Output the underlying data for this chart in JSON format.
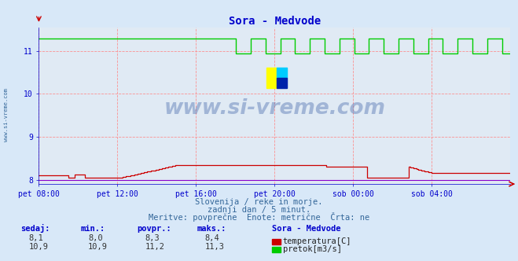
{
  "title": "Sora - Medvode",
  "bg_color": "#d8e8f8",
  "plot_bg_color": "#e0eaf4",
  "grid_color": "#ff8888",
  "ylim": [
    7.9,
    11.55
  ],
  "yticks": [
    8,
    9,
    10,
    11
  ],
  "xlabel_color": "#0000cc",
  "ylabel_color": "#0000cc",
  "title_color": "#0000cc",
  "xtick_labels": [
    "pet 08:00",
    "pet 12:00",
    "pet 16:00",
    "pet 20:00",
    "sob 00:00",
    "sob 04:00"
  ],
  "xtick_positions": [
    0.0,
    0.1667,
    0.3333,
    0.5,
    0.6667,
    0.8333
  ],
  "temp_color": "#cc0000",
  "flow_color": "#00cc00",
  "height_color": "#8800cc",
  "watermark_text": "www.si-vreme.com",
  "watermark_color": "#4466aa",
  "watermark_alpha": 0.4,
  "subtitle1": "Slovenija / reke in morje.",
  "subtitle2": "zadnji dan / 5 minut.",
  "subtitle3": "Meritve: povprečne  Enote: metrične  Črta: ne",
  "subtitle_color": "#336699",
  "legend_title": "Sora - Medvode",
  "legend_color": "#0000cc",
  "table_headers": [
    "sedaj:",
    "min.:",
    "povpr.:",
    "maks.:"
  ],
  "temp_row": [
    "8,1",
    "8,0",
    "8,3",
    "8,4"
  ],
  "flow_row": [
    "10,9",
    "10,9",
    "11,2",
    "11,3"
  ],
  "temp_label": "temperatura[C]",
  "flow_label": "pretok[m3/s]",
  "left_label": "www.si-vreme.com",
  "left_label_color": "#336699",
  "n_points": 288
}
